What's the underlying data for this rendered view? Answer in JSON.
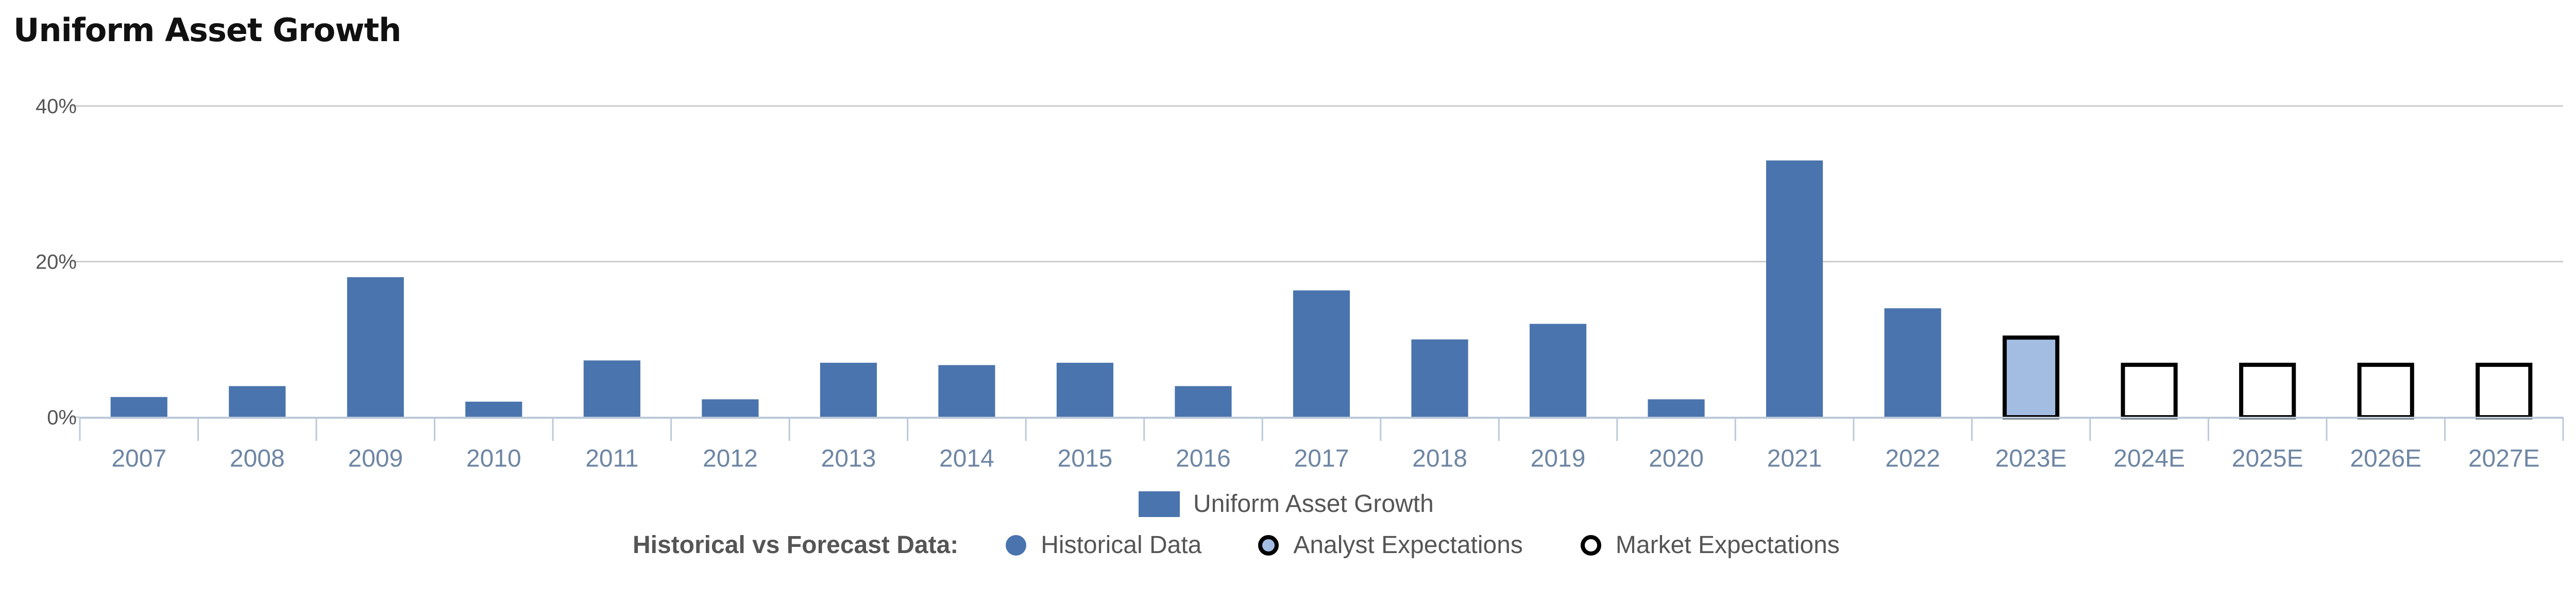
{
  "colors": {
    "historical": "#4a74ad",
    "analyst_fill": "#a3bde2",
    "forecast_stroke": "#000000",
    "grid": "#cccccc",
    "axis": "#bcc9d9",
    "x_tick_text": "#6e86a3",
    "y_tick_text": "#555555"
  },
  "legend": {
    "series_label": "Uniform Asset Growth",
    "forecast_heading": "Historical vs Forecast Data:",
    "historical_label": "Historical Data",
    "analyst_label": "Analyst Expectations",
    "market_label": "Market Expectations"
  },
  "chart_data": {
    "type": "bar",
    "title": "Uniform Asset Growth",
    "xlabel": "",
    "ylabel": "",
    "ylim": [
      0,
      40
    ],
    "y_ticks": [
      {
        "value": 0,
        "label": "0%"
      },
      {
        "value": 20,
        "label": "20%"
      },
      {
        "value": 40,
        "label": "40%"
      }
    ],
    "grid": true,
    "legend_position": "bottom-center",
    "categories": [
      "2007",
      "2008",
      "2009",
      "2010",
      "2011",
      "2012",
      "2013",
      "2014",
      "2015",
      "2016",
      "2017",
      "2018",
      "2019",
      "2020",
      "2021",
      "2022",
      "2023E",
      "2024E",
      "2025E",
      "2026E",
      "2027E"
    ],
    "series": [
      {
        "name": "Uniform Asset Growth",
        "values": [
          2.6,
          4.0,
          18.0,
          2.0,
          7.3,
          2.3,
          7.0,
          6.7,
          7.0,
          4.0,
          16.3,
          10.0,
          12.0,
          2.3,
          33.0,
          14.0,
          10.5,
          7.0,
          7.0,
          7.0,
          7.0
        ],
        "kinds": [
          "historical",
          "historical",
          "historical",
          "historical",
          "historical",
          "historical",
          "historical",
          "historical",
          "historical",
          "historical",
          "historical",
          "historical",
          "historical",
          "historical",
          "historical",
          "historical",
          "analyst",
          "market",
          "market",
          "market",
          "market"
        ]
      }
    ]
  }
}
